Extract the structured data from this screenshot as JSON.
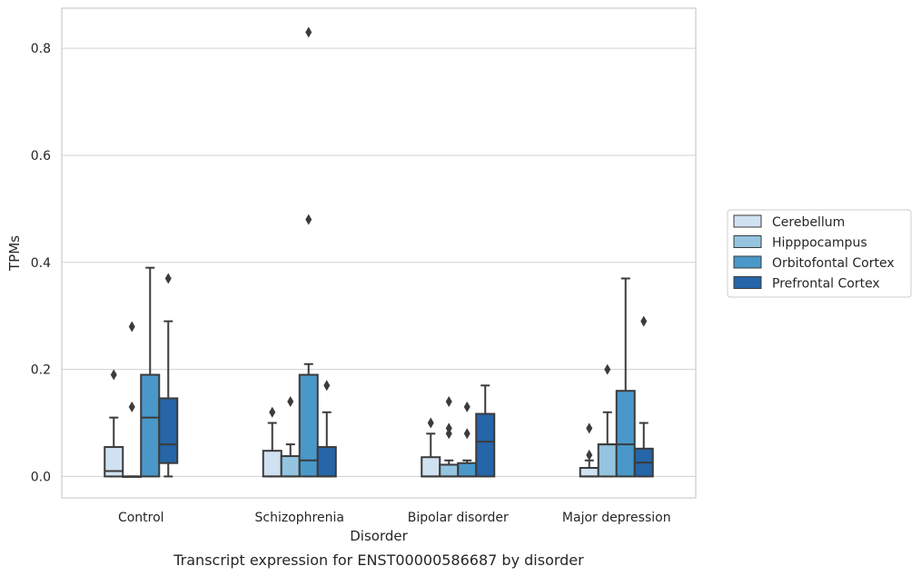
{
  "caption": "Transcript expression for ENST00000586687 by disorder",
  "chart_data": {
    "type": "box",
    "xlabel": "Disorder",
    "ylabel": "TPMs",
    "ylim": [
      -0.04,
      0.875
    ],
    "yticks": [
      0.0,
      0.2,
      0.4,
      0.6,
      0.8
    ],
    "ytick_labels": [
      "0.0",
      "0.2",
      "0.4",
      "0.6",
      "0.8"
    ],
    "grid": true,
    "legend_placement": "right",
    "categories": [
      "Control",
      "Schizophrenia",
      "Bipolar disorder",
      "Major depression"
    ],
    "series": [
      {
        "name": "Cerebellum",
        "color": "#d0e1f2",
        "boxes": [
          {
            "q1": 0.0,
            "median": 0.01,
            "q3": 0.055,
            "whisker_low": 0.0,
            "whisker_high": 0.11,
            "outliers": [
              0.19
            ]
          },
          {
            "q1": 0.0,
            "median": 0.0,
            "q3": 0.048,
            "whisker_low": 0.0,
            "whisker_high": 0.1,
            "outliers": [
              0.12
            ]
          },
          {
            "q1": 0.0,
            "median": 0.0,
            "q3": 0.036,
            "whisker_low": 0.0,
            "whisker_high": 0.08,
            "outliers": [
              0.1
            ]
          },
          {
            "q1": 0.0,
            "median": 0.0,
            "q3": 0.016,
            "whisker_low": 0.0,
            "whisker_high": 0.03,
            "outliers": [
              0.04,
              0.09
            ]
          }
        ]
      },
      {
        "name": "Hipppocampus",
        "color": "#94c4df",
        "boxes": [
          {
            "q1": 0.0,
            "median": 0.0,
            "q3": 0.0,
            "whisker_low": 0.0,
            "whisker_high": 0.0,
            "outliers": [
              0.13,
              0.28
            ]
          },
          {
            "q1": 0.0,
            "median": 0.0,
            "q3": 0.038,
            "whisker_low": 0.0,
            "whisker_high": 0.06,
            "outliers": [
              0.14
            ]
          },
          {
            "q1": 0.0,
            "median": 0.0,
            "q3": 0.022,
            "whisker_low": 0.0,
            "whisker_high": 0.03,
            "outliers": [
              0.08,
              0.09,
              0.14
            ]
          },
          {
            "q1": 0.0,
            "median": 0.06,
            "q3": 0.06,
            "whisker_low": 0.0,
            "whisker_high": 0.12,
            "outliers": [
              0.2
            ]
          }
        ]
      },
      {
        "name": "Orbitofontal Cortex",
        "color": "#4a98c9",
        "boxes": [
          {
            "q1": 0.0,
            "median": 0.11,
            "q3": 0.19,
            "whisker_low": 0.0,
            "whisker_high": 0.39,
            "outliers": []
          },
          {
            "q1": 0.0,
            "median": 0.03,
            "q3": 0.19,
            "whisker_low": 0.0,
            "whisker_high": 0.21,
            "outliers": [
              0.48,
              0.83
            ]
          },
          {
            "q1": 0.0,
            "median": 0.0,
            "q3": 0.025,
            "whisker_low": 0.0,
            "whisker_high": 0.03,
            "outliers": [
              0.08,
              0.13
            ]
          },
          {
            "q1": 0.0,
            "median": 0.06,
            "q3": 0.16,
            "whisker_low": 0.0,
            "whisker_high": 0.37,
            "outliers": []
          }
        ]
      },
      {
        "name": "Prefrontal Cortex",
        "color": "#2565a8",
        "boxes": [
          {
            "q1": 0.025,
            "median": 0.06,
            "q3": 0.146,
            "whisker_low": 0.0,
            "whisker_high": 0.29,
            "outliers": [
              0.37
            ]
          },
          {
            "q1": 0.0,
            "median": 0.0,
            "q3": 0.055,
            "whisker_low": 0.0,
            "whisker_high": 0.12,
            "outliers": [
              0.17
            ]
          },
          {
            "q1": 0.0,
            "median": 0.065,
            "q3": 0.117,
            "whisker_low": 0.0,
            "whisker_high": 0.17,
            "outliers": []
          },
          {
            "q1": 0.0,
            "median": 0.026,
            "q3": 0.052,
            "whisker_low": 0.0,
            "whisker_high": 0.1,
            "outliers": [
              0.29
            ]
          }
        ]
      }
    ]
  }
}
